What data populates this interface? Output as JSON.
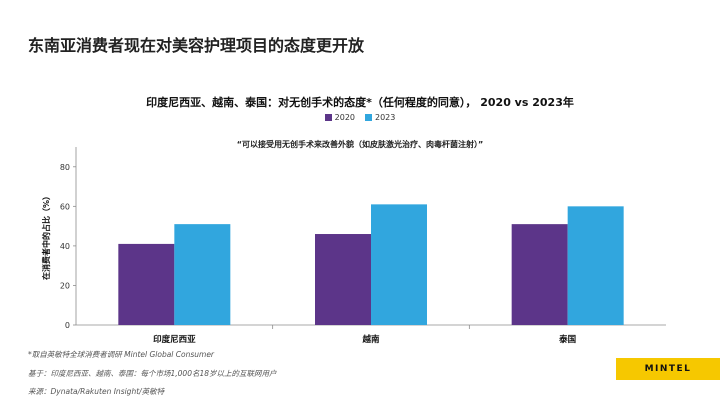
{
  "page_title": "东南亚消费者现在对美容护理项目的态度更开放",
  "colors": {
    "series_2020": "#5c3589",
    "series_2023": "#31a6de",
    "logo_bg": "#f6c800"
  },
  "chart_data": {
    "type": "bar",
    "title": "印度尼西亚、越南、泰国：对无创手术的态度*（任何程度的同意）， 2020 vs 2023年",
    "subtitle": "“可以接受用无创手术来改善外貌（如皮肤激光治疗、肉毒杆菌注射）”",
    "categories": [
      "印度尼西亚",
      "越南",
      "泰国"
    ],
    "series": [
      {
        "name": "2020",
        "values": [
          41,
          46,
          51
        ]
      },
      {
        "name": "2023",
        "values": [
          51,
          61,
          60
        ]
      }
    ],
    "ylabel": "在消费者中的占比（%）",
    "xlabel": "",
    "ylim": [
      0,
      90
    ],
    "yticks": [
      0,
      20,
      40,
      60,
      80
    ],
    "legend_position": "top-center",
    "grid": false
  },
  "footnotes": {
    "line1": "*取自英敏特全球消费者调研 Mintel Global Consumer",
    "line2": "基于：印度尼西亚、越南、泰国：每个市场1,000名18岁以上的互联网用户",
    "line3": "来源：Dynata/Rakuten Insight/英敏特"
  },
  "logo": {
    "text": "MINTEL"
  }
}
